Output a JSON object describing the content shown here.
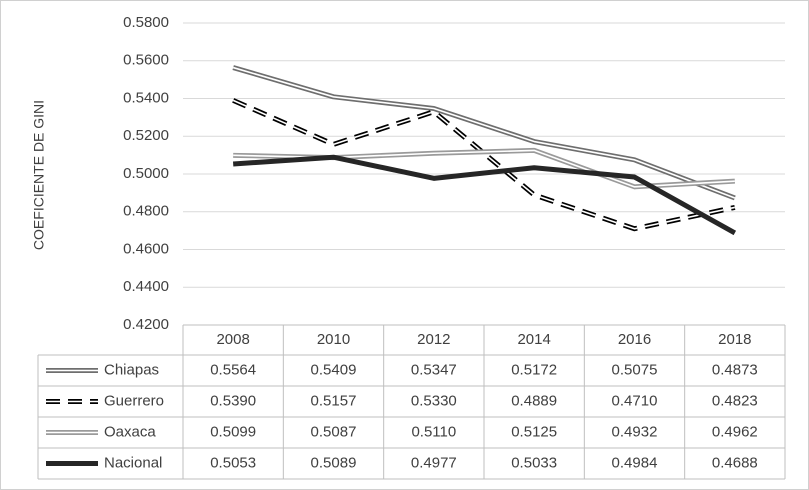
{
  "chart_data": {
    "type": "line",
    "y_label": "COEFICIENTE DE GINI",
    "categories": [
      "2008",
      "2010",
      "2012",
      "2014",
      "2016",
      "2018"
    ],
    "ylim": [
      0.42,
      0.58
    ],
    "yticks": [
      {
        "value": 0.42,
        "label": "0.4200"
      },
      {
        "value": 0.44,
        "label": "0.4400"
      },
      {
        "value": 0.46,
        "label": "0.4600"
      },
      {
        "value": 0.48,
        "label": "0.4800"
      },
      {
        "value": 0.5,
        "label": "0.5000"
      },
      {
        "value": 0.52,
        "label": "0.5200"
      },
      {
        "value": 0.54,
        "label": "0.5400"
      },
      {
        "value": 0.56,
        "label": "0.5600"
      },
      {
        "value": 0.58,
        "label": "0.5800"
      }
    ],
    "grid": true,
    "series": [
      {
        "name": "Chiapas",
        "color": "#6e6e6e",
        "style": "double",
        "values": [
          0.5564,
          0.5409,
          0.5347,
          0.5172,
          0.5075,
          0.4873
        ],
        "value_labels": [
          "0.5564",
          "0.5409",
          "0.5347",
          "0.5172",
          "0.5075",
          "0.4873"
        ]
      },
      {
        "name": "Guerrero",
        "color": "#000000",
        "style": "dashed-double",
        "values": [
          0.539,
          0.5157,
          0.533,
          0.4889,
          0.471,
          0.4823
        ],
        "value_labels": [
          "0.5390",
          "0.5157",
          "0.5330",
          "0.4889",
          "0.4710",
          "0.4823"
        ]
      },
      {
        "name": "Oaxaca",
        "color": "#9a9a9a",
        "style": "double",
        "values": [
          0.5099,
          0.5087,
          0.511,
          0.5125,
          0.4932,
          0.4962
        ],
        "value_labels": [
          "0.5099",
          "0.5087",
          "0.5110",
          "0.5125",
          "0.4932",
          "0.4962"
        ]
      },
      {
        "name": "Nacional",
        "color": "#262626",
        "style": "thick",
        "values": [
          0.5053,
          0.5089,
          0.4977,
          0.5033,
          0.4984,
          0.4688
        ],
        "value_labels": [
          "0.5053",
          "0.5089",
          "0.4977",
          "0.5033",
          "0.4984",
          "0.4688"
        ]
      }
    ]
  }
}
